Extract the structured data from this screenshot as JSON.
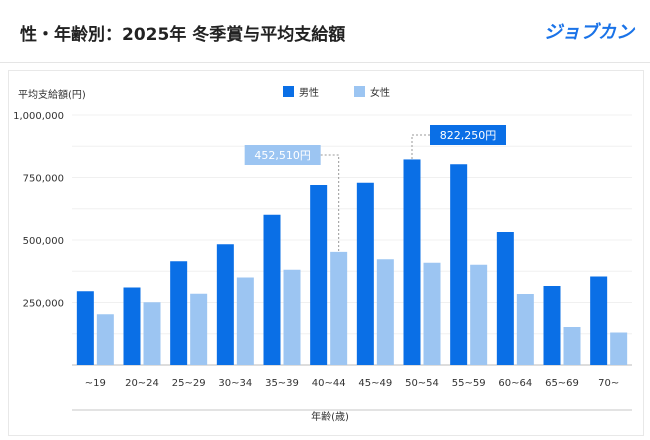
{
  "header": {
    "title": "性・年齢別：2025年 冬季賞与平均支給額",
    "logo": "ジョブカン"
  },
  "colors": {
    "male": "#0a6fe6",
    "female": "#9cc5f2",
    "accent": "#1a73e8"
  },
  "chart_data": {
    "type": "bar",
    "title": "",
    "ylabel": "平均支給額(円)",
    "xlabel": "年齢(歳)",
    "ylim": [
      0,
      1000000
    ],
    "yticks": [
      "250,000",
      "500,000",
      "750,000",
      "1,000,000"
    ],
    "ytick_values": [
      250000,
      500000,
      750000,
      1000000
    ],
    "grid": true,
    "legend_position": "top-center",
    "categories": [
      "~19",
      "20~24",
      "25~29",
      "30~34",
      "35~39",
      "40~44",
      "45~49",
      "50~54",
      "55~59",
      "60~64",
      "65~69",
      "70~"
    ],
    "series": [
      {
        "name": "男性",
        "values": [
          295000,
          310000,
          415000,
          483000,
          601000,
          720000,
          729000,
          822250,
          803000,
          532000,
          316000,
          354000
        ]
      },
      {
        "name": "女性",
        "values": [
          203000,
          251000,
          285000,
          350000,
          381000,
          452510,
          423000,
          409000,
          401000,
          284000,
          152000,
          130000
        ]
      }
    ],
    "annotations": [
      {
        "text": "452,510円",
        "series": "女性",
        "category": "40~44"
      },
      {
        "text": "822,250円",
        "series": "男性",
        "category": "50~54"
      }
    ]
  }
}
